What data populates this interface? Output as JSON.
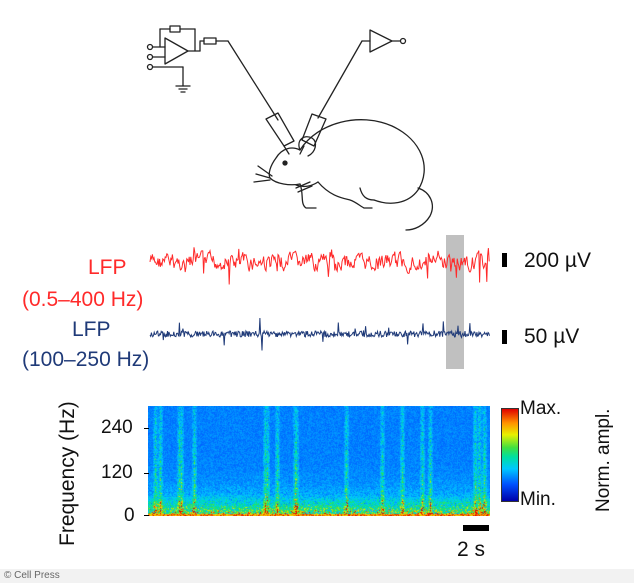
{
  "traces": {
    "lfp_broad": {
      "label_line1": "LFP",
      "label_line2": "(0.5–400 Hz)",
      "scale_label": "200 µV",
      "color": "#ff2a2a"
    },
    "lfp_ripple": {
      "label_line1": "LFP",
      "label_line2": "(100–250 Hz)",
      "scale_label": "50 µV",
      "color": "#1f3a78"
    }
  },
  "spectrogram": {
    "ylabel": "Frequency (Hz)",
    "yticks": [
      "240",
      "120",
      "0"
    ],
    "colorbar": {
      "max_label": "Max.",
      "min_label": "Min.",
      "title": "Norm. ampl."
    },
    "time_scale_label": "2 s"
  },
  "credit": "© Cell Press",
  "highlight_color": "#9e9e9e"
}
